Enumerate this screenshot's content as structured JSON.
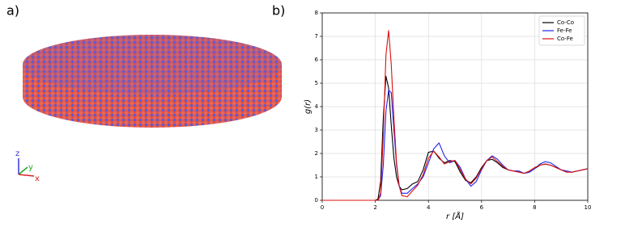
{
  "panels": [
    {
      "label": "a)",
      "axis_labels": [
        "z",
        "y",
        "x"
      ]
    },
    {
      "label": "b)"
    }
  ],
  "chart_data": {
    "type": "line",
    "xlabel": "r [Å]",
    "ylabel": "g(r)",
    "xlim": [
      0,
      10
    ],
    "ylim": [
      0,
      8
    ],
    "xticks": [
      0,
      2,
      4,
      6,
      8,
      10
    ],
    "yticks": [
      0,
      1,
      2,
      3,
      4,
      5,
      6,
      7,
      8
    ],
    "grid": true,
    "legend": "upper-right",
    "x": [
      0,
      1,
      2,
      2.1,
      2.2,
      2.3,
      2.4,
      2.5,
      2.6,
      2.7,
      2.8,
      2.9,
      3.0,
      3.2,
      3.4,
      3.6,
      3.8,
      4.0,
      4.2,
      4.4,
      4.6,
      4.8,
      5.0,
      5.2,
      5.4,
      5.6,
      5.8,
      6.0,
      6.2,
      6.4,
      6.6,
      6.8,
      7.0,
      7.2,
      7.4,
      7.6,
      7.8,
      8.0,
      8.2,
      8.4,
      8.6,
      8.8,
      9.0,
      9.2,
      9.4,
      9.6,
      9.8,
      10
    ],
    "series": [
      {
        "name": "Co-Co",
        "color": "#000000",
        "values": [
          0,
          0,
          0,
          0.05,
          0.8,
          3.5,
          5.3,
          4.8,
          3.2,
          1.8,
          1.0,
          0.6,
          0.45,
          0.5,
          0.7,
          0.8,
          1.3,
          2.05,
          2.1,
          1.8,
          1.6,
          1.7,
          1.65,
          1.2,
          0.85,
          0.75,
          1.0,
          1.4,
          1.7,
          1.75,
          1.6,
          1.4,
          1.3,
          1.25,
          1.25,
          1.15,
          1.2,
          1.35,
          1.5,
          1.55,
          1.5,
          1.4,
          1.3,
          1.25,
          1.2,
          1.25,
          1.3,
          1.35
        ]
      },
      {
        "name": "Fe-Fe",
        "color": "#2222ee",
        "values": [
          0,
          0,
          0,
          0,
          0.2,
          1.5,
          3.8,
          4.7,
          4.6,
          3.0,
          1.5,
          0.6,
          0.3,
          0.3,
          0.5,
          0.7,
          1.0,
          1.6,
          2.2,
          2.45,
          1.9,
          1.6,
          1.7,
          1.4,
          0.9,
          0.6,
          0.8,
          1.3,
          1.7,
          1.9,
          1.75,
          1.5,
          1.3,
          1.25,
          1.25,
          1.15,
          1.2,
          1.35,
          1.55,
          1.65,
          1.6,
          1.45,
          1.3,
          1.25,
          1.2,
          1.25,
          1.3,
          1.35
        ]
      },
      {
        "name": "Co-Fe",
        "color": "#dd1111",
        "values": [
          0,
          0,
          0,
          0,
          0.3,
          2.8,
          6.2,
          7.25,
          5.8,
          3.5,
          1.6,
          0.6,
          0.2,
          0.15,
          0.4,
          0.65,
          1.1,
          1.8,
          2.1,
          1.85,
          1.55,
          1.65,
          1.7,
          1.3,
          0.9,
          0.7,
          0.95,
          1.35,
          1.7,
          1.85,
          1.65,
          1.45,
          1.3,
          1.25,
          1.2,
          1.15,
          1.25,
          1.4,
          1.5,
          1.55,
          1.5,
          1.4,
          1.3,
          1.2,
          1.2,
          1.25,
          1.3,
          1.35
        ]
      }
    ]
  }
}
